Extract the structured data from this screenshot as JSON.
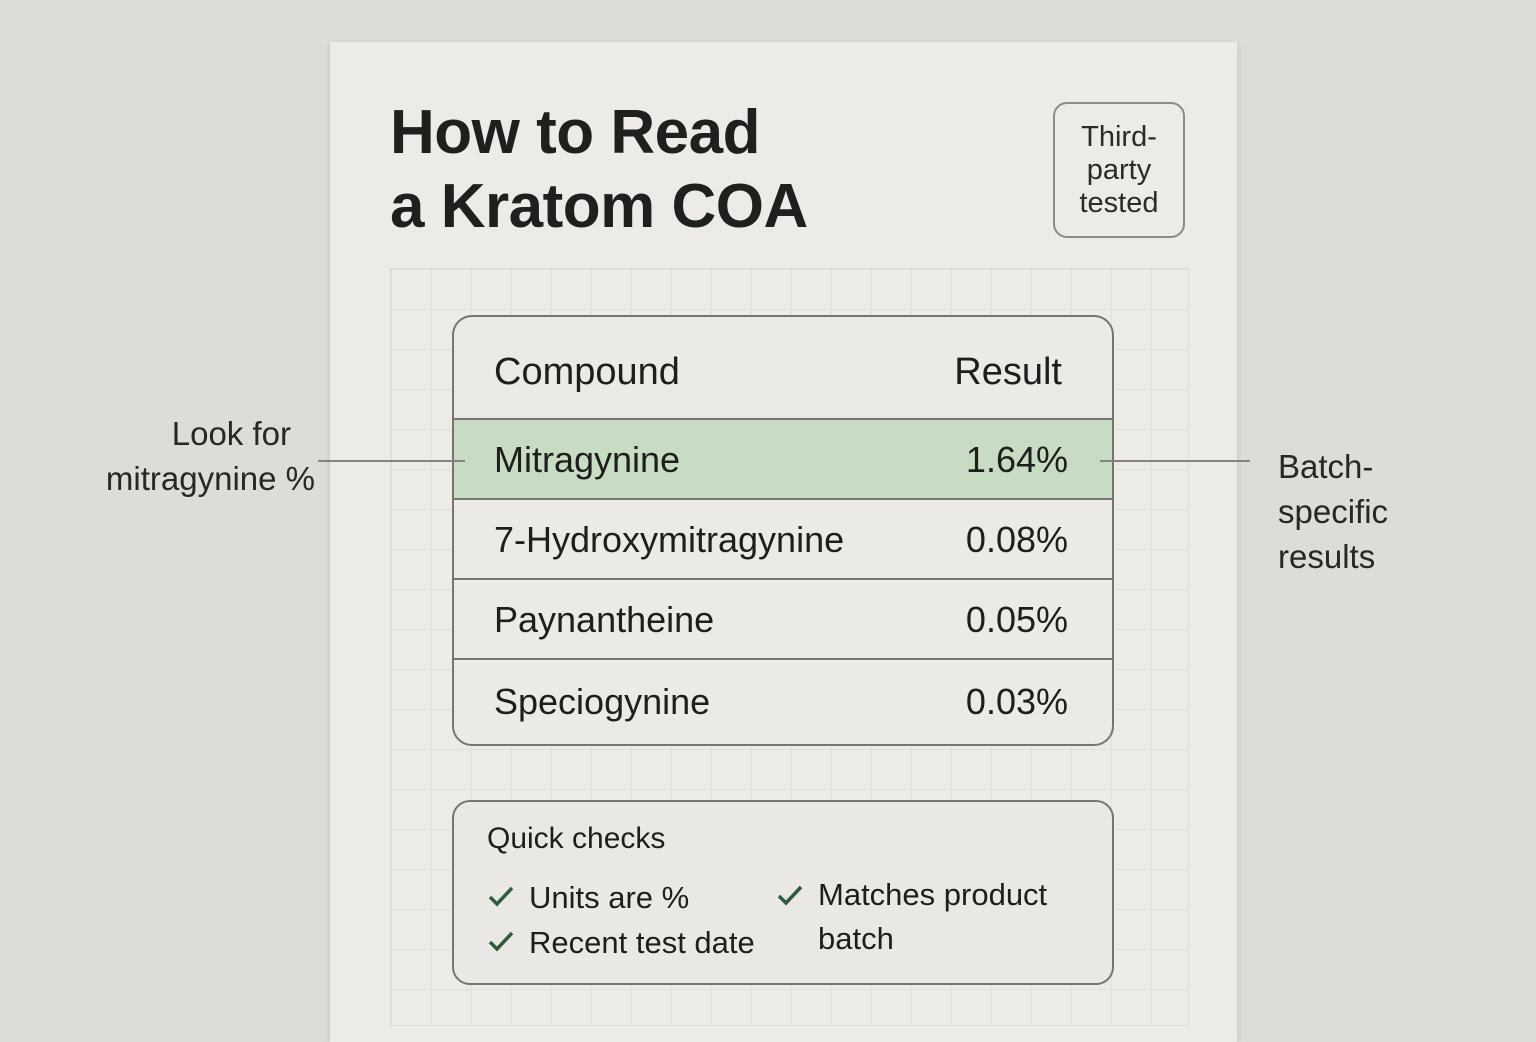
{
  "title_lines": [
    "How to Read",
    "a Kratom COA"
  ],
  "badge": [
    "Third-",
    "party",
    "tested"
  ],
  "table": {
    "headers": {
      "compound": "Compound",
      "result": "Result"
    },
    "rows": [
      {
        "compound": "Mitragynine",
        "result": "1.64%",
        "highlighted": true
      },
      {
        "compound": "7-Hydroxymitragynine",
        "result": "0.08%"
      },
      {
        "compound": "Paynantheine",
        "result": "0.05%"
      },
      {
        "compound": "Speciogynine",
        "result": "0.03%"
      }
    ]
  },
  "callouts": {
    "left": [
      "Look for",
      "mitragynine %"
    ],
    "right": [
      "Batch-",
      "specific",
      "results"
    ]
  },
  "quick_checks": {
    "title": "Quick checks",
    "items": [
      "Units are %",
      "Recent test date",
      "Matches product",
      "batch"
    ]
  },
  "colors": {
    "highlight": "#c8dcc3",
    "check": "#2f5a3e"
  }
}
